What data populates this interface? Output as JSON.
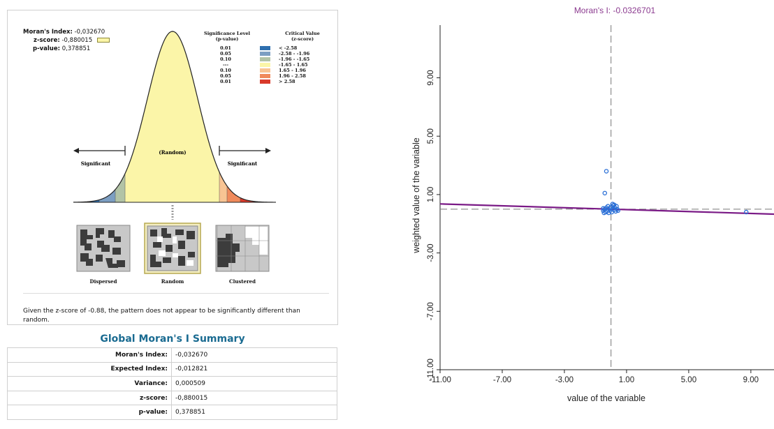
{
  "report": {
    "stats": [
      {
        "label": "Moran's Index:",
        "value": "-0,032670"
      },
      {
        "label": "z-score:",
        "value": "-0,880015"
      },
      {
        "label": "p-value:",
        "value": "0,378851"
      }
    ],
    "legend": {
      "sig_header_1": "Significance Level",
      "sig_header_2": "(p-value)",
      "cv_header_1": "Critical Value",
      "cv_header_2": "(z-score)",
      "rows": [
        {
          "sig": "0.01",
          "cv": "< -2.58",
          "color": "#2e6faf"
        },
        {
          "sig": "0.05",
          "cv": "-2.58 - -1.96",
          "color": "#7c9ec2"
        },
        {
          "sig": "0.10",
          "cv": "-1.96 - -1.65",
          "color": "#b2c3a6"
        },
        {
          "sig": "---",
          "cv": "-1.65 - 1.65",
          "color": "#fbf5a8"
        },
        {
          "sig": "0.10",
          "cv": "1.65 - 1.96",
          "color": "#f8c493"
        },
        {
          "sig": "0.05",
          "cv": "1.96 - 2.58",
          "color": "#f08a5b"
        },
        {
          "sig": "0.01",
          "cv": "> 2.58",
          "color": "#d93a2b"
        }
      ]
    },
    "curve_labels": {
      "left": "Significant",
      "middle": "(Random)",
      "right": "Significant"
    },
    "maps": {
      "dispersed": "Dispersed",
      "random": "Random",
      "clustered": "Clustered"
    },
    "explanation_prefix": "Given the z-score of -0.88, the pattern does not appear to be significantly different than",
    "explanation_suffix": "random."
  },
  "summary": {
    "title": "Global Moran's I Summary",
    "rows": [
      {
        "label": "Moran's Index:",
        "value": "-0,032670"
      },
      {
        "label": "Expected Index:",
        "value": "-0,012821"
      },
      {
        "label": "Variance:",
        "value": "0,000509"
      },
      {
        "label": "z-score:",
        "value": "-0,880015"
      },
      {
        "label": "p-value:",
        "value": "0,378851"
      }
    ]
  },
  "chart_data": {
    "type": "scatter",
    "title": "Moran's I: -0.0326701",
    "xlabel": "value of the variable",
    "ylabel": "weighted value of the variable",
    "xlim": [
      -11,
      11
    ],
    "ylim": [
      -11,
      11
    ],
    "xticks": [
      "-11.00",
      "-7.00",
      "-3.00",
      "1.00",
      "5.00",
      "9.00"
    ],
    "yticks": [
      "-11.00",
      "-7.00",
      "-3.00",
      "1.00",
      "5.00",
      "9.00"
    ],
    "grid": false,
    "colors": {
      "title": "#8b3a8f",
      "regression": "#7a1a86",
      "points": "#2a6fd6",
      "reference": "#777777"
    },
    "regression_slope": -0.0326701,
    "reference_lines": {
      "x": 0,
      "y": 0
    },
    "points": [
      {
        "x": -0.3,
        "y": 2.6
      },
      {
        "x": -0.4,
        "y": 1.1
      },
      {
        "x": -0.5,
        "y": 0.05
      },
      {
        "x": -0.5,
        "y": -0.1
      },
      {
        "x": -0.45,
        "y": -0.25
      },
      {
        "x": -0.4,
        "y": 0.0
      },
      {
        "x": -0.35,
        "y": -0.2
      },
      {
        "x": -0.3,
        "y": 0.1
      },
      {
        "x": -0.25,
        "y": -0.15
      },
      {
        "x": -0.2,
        "y": 0.0
      },
      {
        "x": -0.15,
        "y": -0.25
      },
      {
        "x": -0.1,
        "y": 0.05
      },
      {
        "x": -0.05,
        "y": -0.1
      },
      {
        "x": 0.0,
        "y": 0.15
      },
      {
        "x": 0.05,
        "y": -0.2
      },
      {
        "x": 0.1,
        "y": 0.0
      },
      {
        "x": 0.15,
        "y": 0.25
      },
      {
        "x": 0.2,
        "y": -0.05
      },
      {
        "x": 0.25,
        "y": 0.1
      },
      {
        "x": 0.3,
        "y": -0.15
      },
      {
        "x": 0.35,
        "y": 0.2
      },
      {
        "x": 0.4,
        "y": 0.0
      },
      {
        "x": 0.45,
        "y": -0.1
      },
      {
        "x": 0.1,
        "y": 0.35
      },
      {
        "x": 0.2,
        "y": 0.3
      },
      {
        "x": -0.2,
        "y": 0.2
      },
      {
        "x": 8.7,
        "y": -0.2
      }
    ]
  }
}
